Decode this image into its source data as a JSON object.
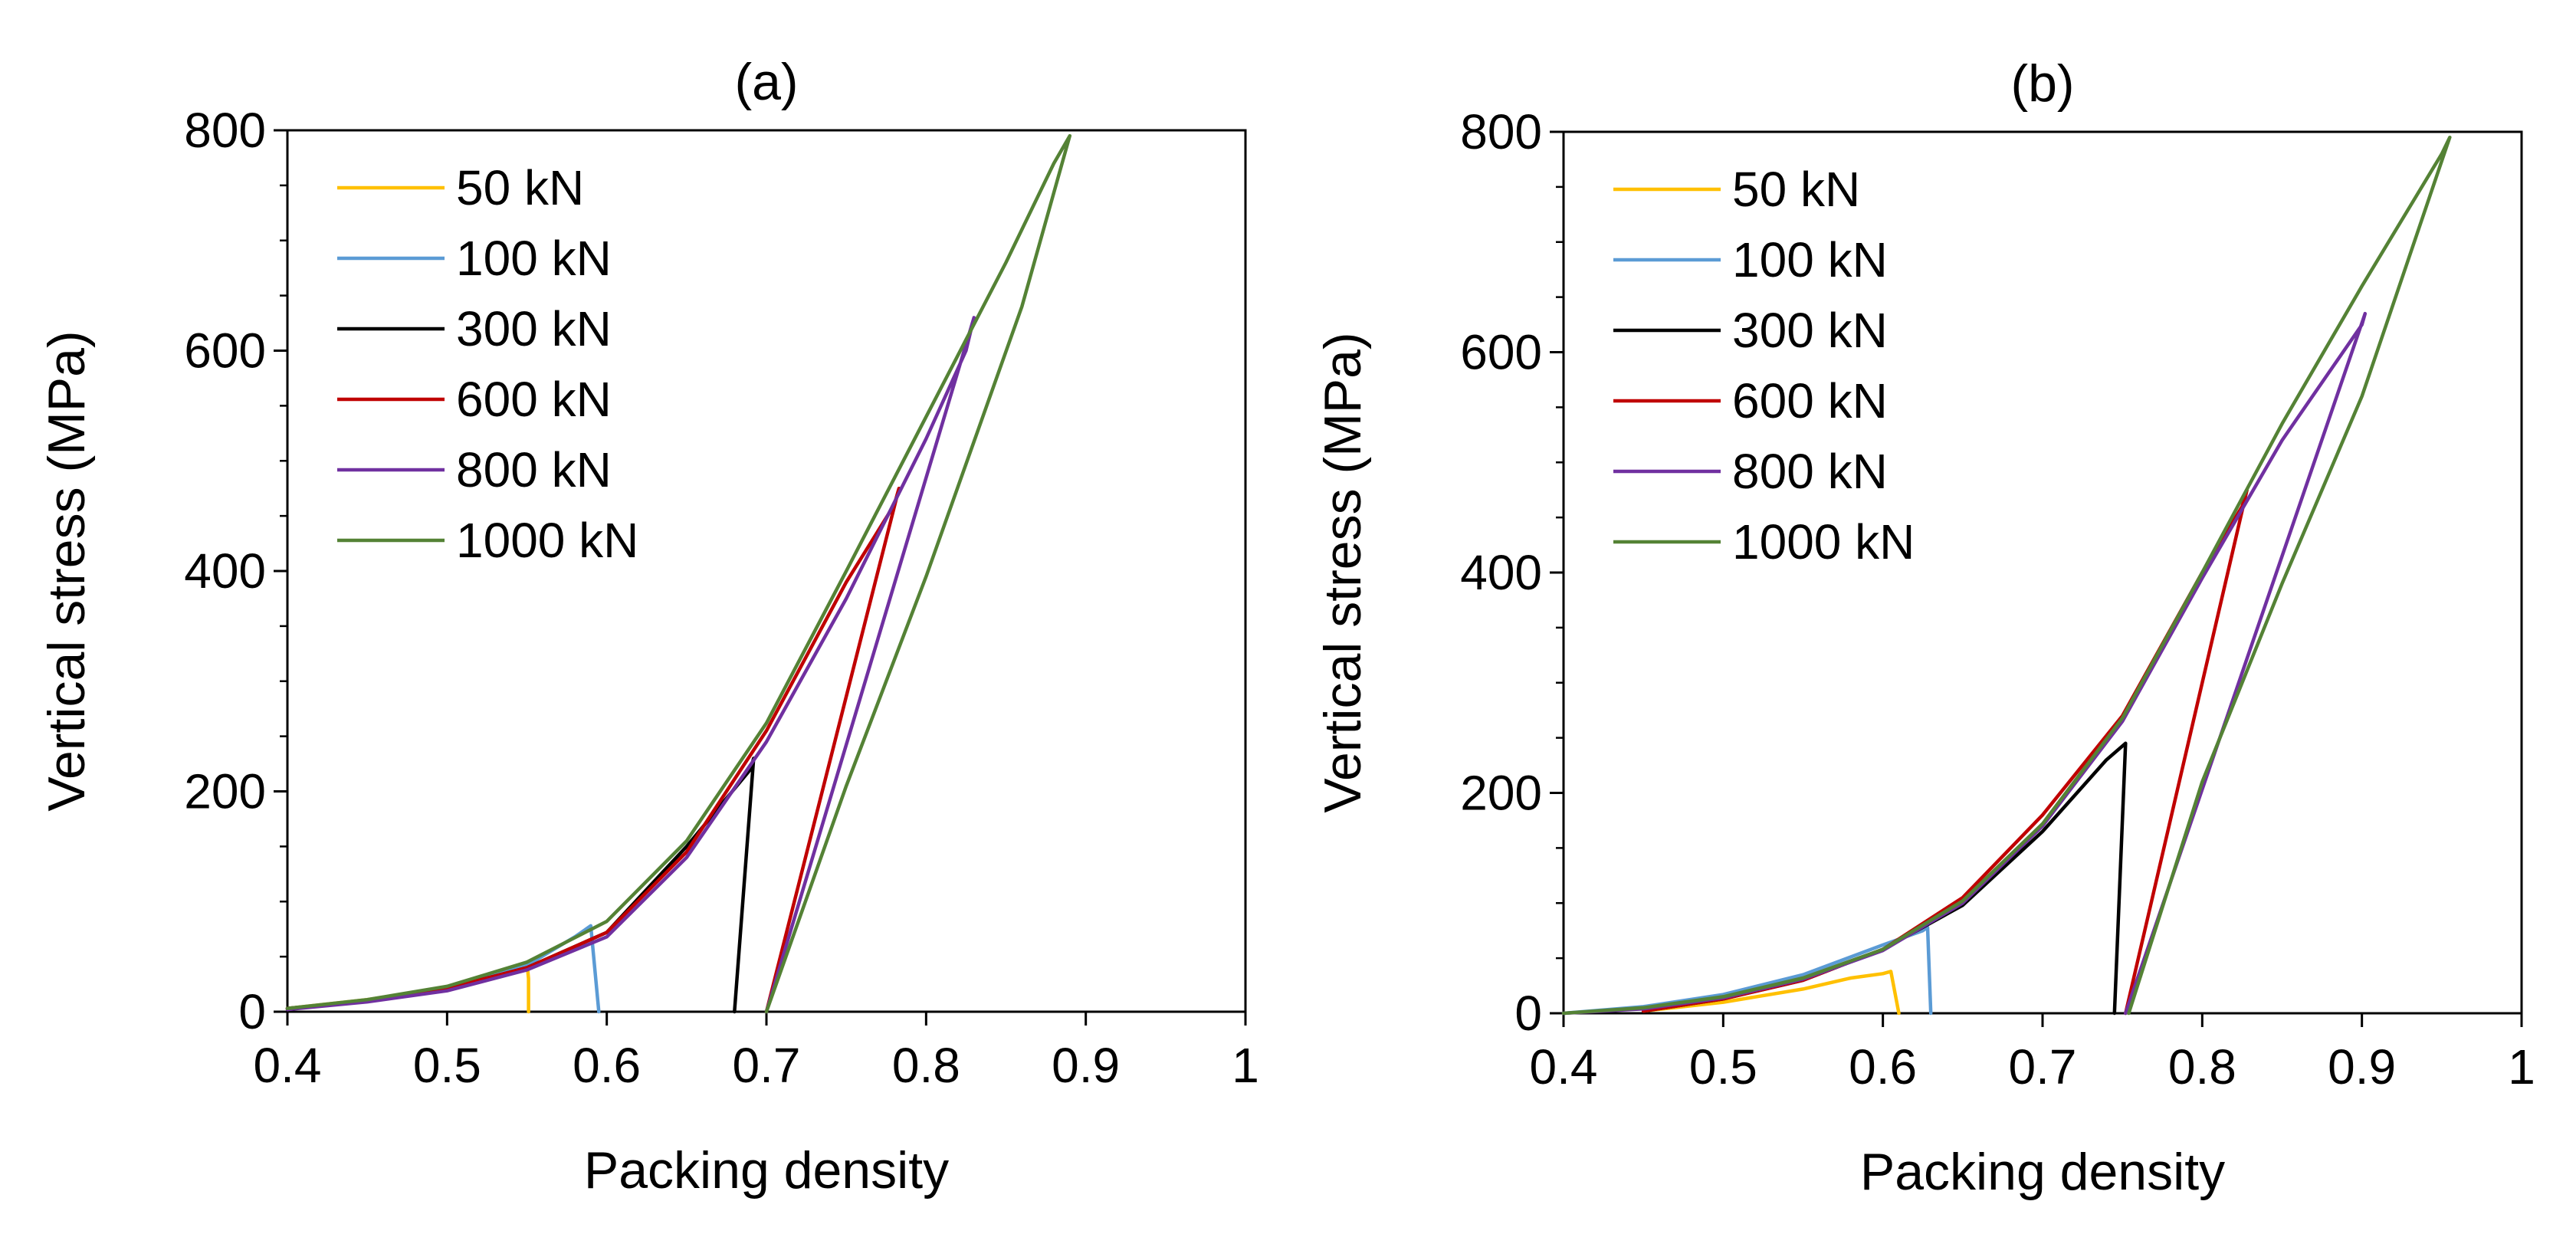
{
  "chart_data": [
    {
      "type": "line",
      "title": "(a)",
      "xlabel": "Packing density",
      "ylabel": "Vertical stress (MPa)",
      "xlim": [
        0.4,
        1.0
      ],
      "ylim": [
        0,
        800
      ],
      "xticks": [
        0.4,
        0.5,
        0.6,
        0.7,
        0.8,
        0.9,
        1.0
      ],
      "xtick_labels": [
        "0.4",
        "0.5",
        "0.6",
        "0.7",
        "0.8",
        "0.9",
        "1"
      ],
      "yticks": [
        0,
        200,
        400,
        600,
        800
      ],
      "ytick_labels": [
        "0",
        "200",
        "400",
        "600",
        "800"
      ],
      "grid": false,
      "legend_position": "top-left",
      "series": [
        {
          "name": "50 kN",
          "color": "#FFC000",
          "x": [
            0.4,
            0.45,
            0.5,
            0.53,
            0.55,
            0.551,
            0.551
          ],
          "y": [
            3,
            11,
            22,
            33,
            45,
            30,
            0
          ]
        },
        {
          "name": "100 kN",
          "color": "#5B9BD5",
          "x": [
            0.4,
            0.45,
            0.5,
            0.55,
            0.58,
            0.59,
            0.595
          ],
          "y": [
            3,
            10,
            21,
            42,
            68,
            78,
            0
          ]
        },
        {
          "name": "300 kN",
          "color": "#000000",
          "x": [
            0.4,
            0.45,
            0.5,
            0.55,
            0.6,
            0.65,
            0.69,
            0.692,
            0.68
          ],
          "y": [
            3,
            10,
            21,
            40,
            72,
            150,
            220,
            230,
            0
          ]
        },
        {
          "name": "600 kN",
          "color": "#C00000",
          "x": [
            0.4,
            0.45,
            0.5,
            0.55,
            0.6,
            0.65,
            0.7,
            0.75,
            0.78,
            0.783,
            0.7
          ],
          "y": [
            3,
            10,
            21,
            40,
            72,
            145,
            255,
            390,
            460,
            475,
            0
          ]
        },
        {
          "name": "800 kN",
          "color": "#7030A0",
          "x": [
            0.4,
            0.45,
            0.5,
            0.55,
            0.6,
            0.65,
            0.7,
            0.75,
            0.8,
            0.825,
            0.83,
            0.7
          ],
          "y": [
            2,
            9,
            19,
            38,
            68,
            140,
            245,
            375,
            520,
            600,
            630,
            0
          ]
        },
        {
          "name": "1000 kN",
          "color": "#548235",
          "x": [
            0.4,
            0.45,
            0.5,
            0.55,
            0.6,
            0.65,
            0.7,
            0.75,
            0.8,
            0.85,
            0.88,
            0.89,
            0.86,
            0.8,
            0.75,
            0.7
          ],
          "y": [
            3,
            11,
            23,
            45,
            82,
            155,
            262,
            400,
            540,
            680,
            770,
            795,
            640,
            395,
            205,
            0
          ]
        }
      ]
    },
    {
      "type": "line",
      "title": "(b)",
      "xlabel": "Packing density",
      "ylabel": "Vertical stress (MPa)",
      "xlim": [
        0.4,
        1.0
      ],
      "ylim": [
        0,
        800
      ],
      "xticks": [
        0.4,
        0.5,
        0.6,
        0.7,
        0.8,
        0.9,
        1.0
      ],
      "xtick_labels": [
        "0.4",
        "0.5",
        "0.6",
        "0.7",
        "0.8",
        "0.9",
        "1"
      ],
      "yticks": [
        0,
        200,
        400,
        600,
        800
      ],
      "ytick_labels": [
        "0",
        "200",
        "400",
        "600",
        "800"
      ],
      "grid": false,
      "legend_position": "top-left",
      "series": [
        {
          "name": "50 kN",
          "color": "#FFC000",
          "x": [
            0.45,
            0.5,
            0.55,
            0.58,
            0.6,
            0.605,
            0.61
          ],
          "y": [
            2,
            10,
            22,
            32,
            36,
            38,
            0
          ]
        },
        {
          "name": "100 kN",
          "color": "#5B9BD5",
          "x": [
            0.4,
            0.45,
            0.5,
            0.55,
            0.6,
            0.625,
            0.628,
            0.63
          ],
          "y": [
            0,
            6,
            17,
            35,
            62,
            75,
            78,
            0
          ]
        },
        {
          "name": "300 kN",
          "color": "#000000",
          "x": [
            0.45,
            0.5,
            0.55,
            0.6,
            0.65,
            0.7,
            0.74,
            0.752,
            0.745
          ],
          "y": [
            2,
            13,
            30,
            58,
            98,
            165,
            230,
            245,
            0
          ]
        },
        {
          "name": "600 kN",
          "color": "#C00000",
          "x": [
            0.45,
            0.5,
            0.55,
            0.6,
            0.65,
            0.7,
            0.75,
            0.8,
            0.825,
            0.828,
            0.752
          ],
          "y": [
            2,
            13,
            30,
            58,
            105,
            180,
            270,
            400,
            460,
            475,
            0
          ]
        },
        {
          "name": "800 kN",
          "color": "#7030A0",
          "x": [
            0.4,
            0.45,
            0.5,
            0.55,
            0.6,
            0.65,
            0.7,
            0.75,
            0.8,
            0.85,
            0.9,
            0.902,
            0.752
          ],
          "y": [
            0,
            4,
            14,
            31,
            57,
            100,
            170,
            265,
            395,
            520,
            625,
            635,
            0
          ]
        },
        {
          "name": "1000 kN",
          "color": "#548235",
          "x": [
            0.4,
            0.45,
            0.5,
            0.55,
            0.6,
            0.65,
            0.7,
            0.75,
            0.8,
            0.85,
            0.9,
            0.95,
            0.955,
            0.9,
            0.85,
            0.8,
            0.754
          ],
          "y": [
            0,
            5,
            15,
            32,
            58,
            102,
            172,
            268,
            400,
            535,
            660,
            780,
            795,
            560,
            390,
            210,
            0
          ]
        }
      ]
    }
  ]
}
